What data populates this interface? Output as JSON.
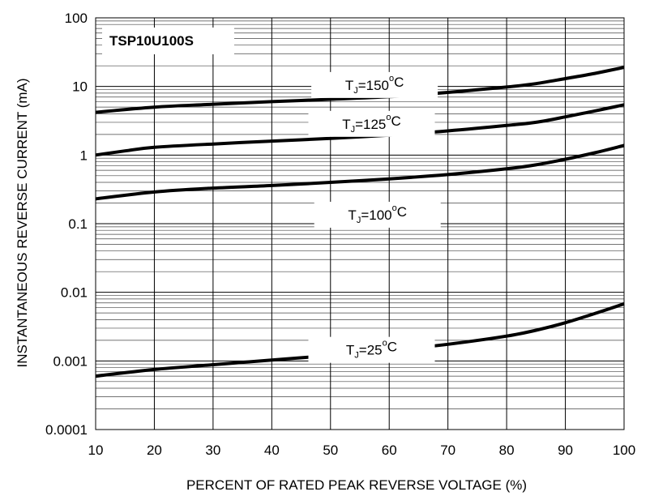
{
  "chart_data": {
    "type": "line",
    "part_number": "TSP10U100S",
    "xlabel": "PERCENT OF RATED PEAK REVERSE VOLTAGE (%)",
    "ylabel": "INSTANTANEOUS REVERSE CURRENT (mA)",
    "xlim": [
      10,
      100
    ],
    "ylim": [
      0.0001,
      100
    ],
    "yscale": "log",
    "grid": true,
    "x_ticks": [
      "10",
      "20",
      "30",
      "40",
      "50",
      "60",
      "70",
      "80",
      "90",
      "100"
    ],
    "y_ticks": [
      "0.0001",
      "0.001",
      "0.01",
      "0.1",
      "1",
      "10",
      "100"
    ],
    "series": [
      {
        "name": "TJ=150°C",
        "label_parts": {
          "sym": "T",
          "sub": "J",
          "eq": "=150",
          "deg": "o",
          "unit": "C"
        },
        "x": [
          10,
          20,
          30,
          40,
          50,
          60,
          70,
          80,
          85,
          90,
          95,
          100
        ],
        "y": [
          4.2,
          5.0,
          5.5,
          6.0,
          6.5,
          7.1,
          8.2,
          9.8,
          11.0,
          13.0,
          15.5,
          19.0
        ]
      },
      {
        "name": "TJ=125°C",
        "label_parts": {
          "sym": "T",
          "sub": "J",
          "eq": "=125",
          "deg": "o",
          "unit": "C"
        },
        "x": [
          10,
          15,
          20,
          30,
          40,
          50,
          60,
          70,
          80,
          85,
          90,
          95,
          100
        ],
        "y": [
          1.0,
          1.15,
          1.3,
          1.45,
          1.6,
          1.75,
          1.95,
          2.25,
          2.7,
          3.0,
          3.6,
          4.4,
          5.4
        ]
      },
      {
        "name": "TJ=100°C",
        "label_parts": {
          "sym": "T",
          "sub": "J",
          "eq": "=100",
          "deg": "o",
          "unit": "C"
        },
        "x": [
          10,
          20,
          30,
          40,
          50,
          60,
          70,
          80,
          85,
          90,
          95,
          100
        ],
        "y": [
          0.23,
          0.29,
          0.33,
          0.36,
          0.4,
          0.45,
          0.52,
          0.63,
          0.72,
          0.87,
          1.08,
          1.38
        ]
      },
      {
        "name": "TJ=25°C",
        "label_parts": {
          "sym": "T",
          "sub": "J",
          "eq": "=25",
          "deg": "o",
          "unit": "C"
        },
        "x": [
          10,
          20,
          30,
          40,
          50,
          60,
          70,
          80,
          85,
          90,
          95,
          100
        ],
        "y": [
          0.0006,
          0.00075,
          0.00088,
          0.00103,
          0.0012,
          0.00142,
          0.00175,
          0.0023,
          0.0028,
          0.0036,
          0.0049,
          0.0068
        ]
      }
    ]
  }
}
